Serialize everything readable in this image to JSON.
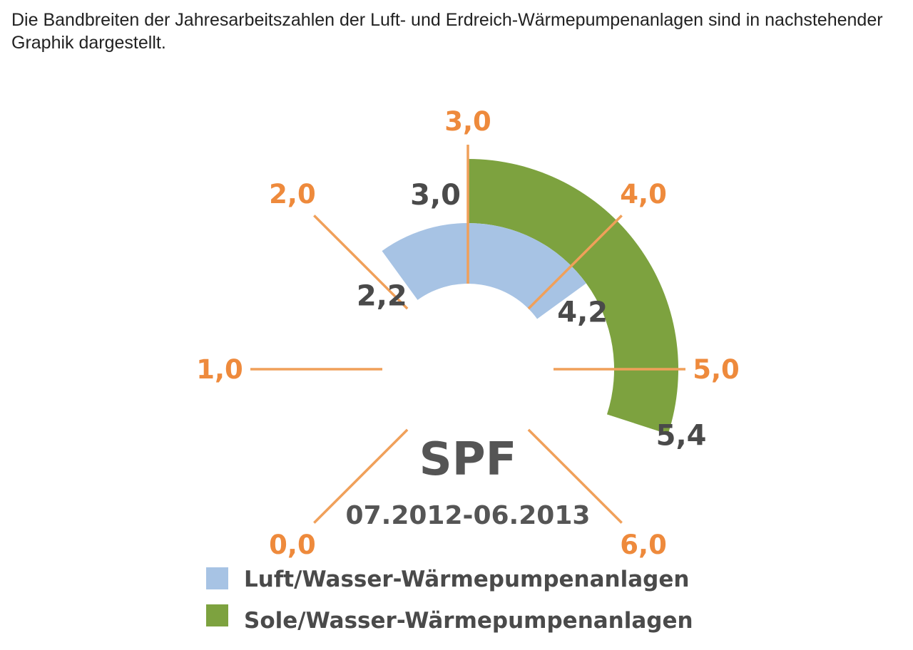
{
  "intro_text": "Die Bandbreiten der Jahresarbeitszahlen der Luft- und Erdreich-Wärmepumpenanlagen sind in nachstehender Graphik dargestellt.",
  "colors": {
    "scale": "#F0A05A",
    "scale_label": "#EE8A3C",
    "bound_label": "#4A4A4A",
    "center_text": "#555555",
    "luft": "#A7C3E4",
    "sole": "#7DA23F"
  },
  "chart_data": {
    "type": "gauge",
    "title": "SPF",
    "subtitle": "07.2012-06.2013",
    "scale": {
      "min": 0,
      "max": 6,
      "ticks": [
        {
          "value": 0,
          "label": "0,0"
        },
        {
          "value": 1,
          "label": "1,0"
        },
        {
          "value": 2,
          "label": "2,0"
        },
        {
          "value": 3,
          "label": "3,0"
        },
        {
          "value": 4,
          "label": "4,0"
        },
        {
          "value": 5,
          "label": "5,0"
        },
        {
          "value": 6,
          "label": "6,0"
        }
      ]
    },
    "series": [
      {
        "name": "Luft/Wasser-Wärmepumpenanlagen",
        "color": "#A7C3E4",
        "range": [
          2.2,
          4.2
        ],
        "range_labels": [
          "2,2",
          "4,2"
        ]
      },
      {
        "name": "Sole/Wasser-Wärmepumpenanlagen",
        "color": "#7DA23F",
        "range": [
          3.0,
          5.4
        ],
        "range_labels": [
          "3,0",
          "5,4"
        ]
      }
    ],
    "legend": {
      "position": "bottom"
    }
  }
}
